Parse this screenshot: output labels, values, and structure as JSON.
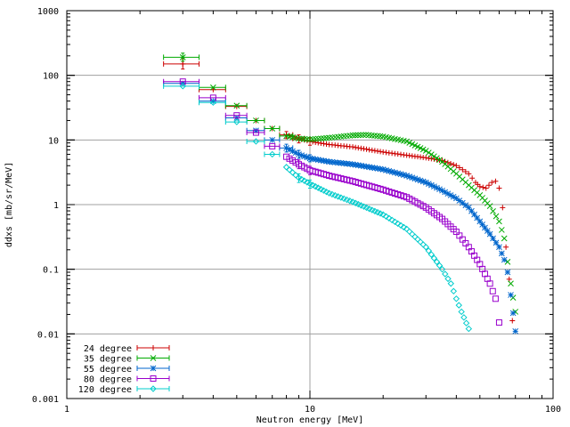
{
  "chart_data": {
    "type": "scatter",
    "xlabel": "Neutron energy [MeV]",
    "ylabel": "ddxs [mb/sr/MeV]",
    "xscale": "log",
    "yscale": "log",
    "xlim": [
      1,
      100
    ],
    "ylim": [
      0.001,
      1000
    ],
    "x_ticks": [
      {
        "value": 1,
        "label": "1"
      },
      {
        "value": 10,
        "label": "10"
      },
      {
        "value": 100,
        "label": "100"
      }
    ],
    "y_ticks": [
      {
        "value": 0.001,
        "label": "0.001"
      },
      {
        "value": 0.01,
        "label": "0.01"
      },
      {
        "value": 0.1,
        "label": "0.1"
      },
      {
        "value": 1,
        "label": "1"
      },
      {
        "value": 10,
        "label": "10"
      },
      {
        "value": 100,
        "label": "100"
      },
      {
        "value": 1000,
        "label": "1000"
      }
    ],
    "grid": true,
    "legend_position": "bottom-left",
    "series": [
      {
        "name": "24 degree",
        "color": "#cc0000",
        "marker": "plus",
        "points": [
          {
            "x": 3.0,
            "y": 150,
            "xlo": 2.5,
            "xhi": 3.5,
            "ylo": 125,
            "yhi": 180
          },
          {
            "x": 4.0,
            "y": 60,
            "xlo": 3.5,
            "xhi": 4.5
          },
          {
            "x": 5.0,
            "y": 33,
            "xlo": 4.5,
            "xhi": 5.5
          },
          {
            "x": 6.0,
            "y": 20,
            "xlo": 5.5,
            "xhi": 6.5
          },
          {
            "x": 7.0,
            "y": 15,
            "xlo": 6.5,
            "xhi": 7.5
          },
          {
            "x": 8.0,
            "y": 12,
            "xlo": 7.5,
            "xhi": 8.5,
            "ylo": 10.5,
            "yhi": 13.5
          },
          {
            "x": 9.0,
            "y": 10.5,
            "xlo": 8.5,
            "xhi": 9.5,
            "ylo": 9.0,
            "yhi": 12.0
          },
          {
            "x": 10.0,
            "y": 9.5,
            "ylo": 8.3,
            "yhi": 10.8
          },
          {
            "x": 12.0,
            "y": 8.5
          },
          {
            "x": 15.0,
            "y": 7.8
          },
          {
            "x": 20.0,
            "y": 6.5
          },
          {
            "x": 25.0,
            "y": 5.8
          },
          {
            "x": 30.0,
            "y": 5.3
          },
          {
            "x": 35.0,
            "y": 4.8
          },
          {
            "x": 40.0,
            "y": 4.0
          },
          {
            "x": 45.0,
            "y": 3.0
          },
          {
            "x": 48.0,
            "y": 2.2
          },
          {
            "x": 50.0,
            "y": 1.9
          },
          {
            "x": 53.0,
            "y": 1.8
          },
          {
            "x": 56.0,
            "y": 2.2
          },
          {
            "x": 58.0,
            "y": 2.3
          },
          {
            "x": 60.0,
            "y": 1.8
          },
          {
            "x": 62.0,
            "y": 0.9
          },
          {
            "x": 64.0,
            "y": 0.22
          },
          {
            "x": 66.0,
            "y": 0.07
          },
          {
            "x": 68.0,
            "y": 0.016
          }
        ]
      },
      {
        "name": "35 degree",
        "color": "#00aa00",
        "marker": "cross",
        "points": [
          {
            "x": 3.0,
            "y": 190,
            "xlo": 2.5,
            "xhi": 3.5,
            "ylo": 165,
            "yhi": 220
          },
          {
            "x": 4.0,
            "y": 65,
            "xlo": 3.5,
            "xhi": 4.5
          },
          {
            "x": 5.0,
            "y": 34,
            "xlo": 4.5,
            "xhi": 5.5
          },
          {
            "x": 6.0,
            "y": 20,
            "xlo": 5.5,
            "xhi": 6.5
          },
          {
            "x": 7.0,
            "y": 15,
            "xlo": 6.5,
            "xhi": 7.5
          },
          {
            "x": 8.0,
            "y": 11.5,
            "xlo": 7.5,
            "xhi": 8.5
          },
          {
            "x": 9.0,
            "y": 10.5
          },
          {
            "x": 10.0,
            "y": 10.2
          },
          {
            "x": 12.0,
            "y": 10.8
          },
          {
            "x": 15.0,
            "y": 11.8
          },
          {
            "x": 17.0,
            "y": 12.0
          },
          {
            "x": 20.0,
            "y": 11.3
          },
          {
            "x": 25.0,
            "y": 9.5
          },
          {
            "x": 30.0,
            "y": 6.8
          },
          {
            "x": 35.0,
            "y": 4.6
          },
          {
            "x": 40.0,
            "y": 3.0
          },
          {
            "x": 45.0,
            "y": 2.0
          },
          {
            "x": 50.0,
            "y": 1.4
          },
          {
            "x": 55.0,
            "y": 0.95
          },
          {
            "x": 60.0,
            "y": 0.55
          },
          {
            "x": 63.0,
            "y": 0.3
          },
          {
            "x": 65.0,
            "y": 0.13
          },
          {
            "x": 67.0,
            "y": 0.06
          },
          {
            "x": 70.0,
            "y": 0.022
          }
        ]
      },
      {
        "name": "55 degree",
        "color": "#0066cc",
        "marker": "star",
        "points": [
          {
            "x": 3.0,
            "y": 75,
            "xlo": 2.5,
            "xhi": 3.5
          },
          {
            "x": 4.0,
            "y": 40,
            "xlo": 3.5,
            "xhi": 4.5
          },
          {
            "x": 5.0,
            "y": 22,
            "xlo": 4.5,
            "xhi": 5.5
          },
          {
            "x": 6.0,
            "y": 14,
            "xlo": 5.5,
            "xhi": 6.5
          },
          {
            "x": 7.0,
            "y": 10,
            "xlo": 6.5,
            "xhi": 7.5
          },
          {
            "x": 8.0,
            "y": 7.5,
            "xlo": 7.5,
            "xhi": 8.5,
            "ylo": 6.5,
            "yhi": 8.6
          },
          {
            "x": 9.0,
            "y": 6.0,
            "ylo": 5.2,
            "yhi": 6.9
          },
          {
            "x": 10.0,
            "y": 5.2,
            "ylo": 4.6,
            "yhi": 5.9
          },
          {
            "x": 12.0,
            "y": 4.6
          },
          {
            "x": 15.0,
            "y": 4.2
          },
          {
            "x": 20.0,
            "y": 3.5
          },
          {
            "x": 25.0,
            "y": 2.8
          },
          {
            "x": 30.0,
            "y": 2.2
          },
          {
            "x": 35.0,
            "y": 1.65
          },
          {
            "x": 40.0,
            "y": 1.25
          },
          {
            "x": 45.0,
            "y": 0.9
          },
          {
            "x": 50.0,
            "y": 0.55
          },
          {
            "x": 55.0,
            "y": 0.35
          },
          {
            "x": 60.0,
            "y": 0.22
          },
          {
            "x": 63.0,
            "y": 0.14
          },
          {
            "x": 65.0,
            "y": 0.09
          },
          {
            "x": 67.0,
            "y": 0.04
          },
          {
            "x": 70.0,
            "y": 0.011
          }
        ]
      },
      {
        "name": "80 degree",
        "color": "#9900cc",
        "marker": "box",
        "points": [
          {
            "x": 3.0,
            "y": 80,
            "xlo": 2.5,
            "xhi": 3.5
          },
          {
            "x": 4.0,
            "y": 45,
            "xlo": 3.5,
            "xhi": 4.5
          },
          {
            "x": 5.0,
            "y": 24,
            "xlo": 4.5,
            "xhi": 5.5
          },
          {
            "x": 6.0,
            "y": 13,
            "xlo": 5.5,
            "xhi": 6.5
          },
          {
            "x": 7.0,
            "y": 8.0,
            "xlo": 6.5,
            "xhi": 7.5
          },
          {
            "x": 8.0,
            "y": 5.5
          },
          {
            "x": 9.0,
            "y": 4.2,
            "ylo": 3.6,
            "yhi": 4.9
          },
          {
            "x": 10.0,
            "y": 3.4,
            "ylo": 2.9,
            "yhi": 3.9
          },
          {
            "x": 12.0,
            "y": 2.8
          },
          {
            "x": 15.0,
            "y": 2.3
          },
          {
            "x": 20.0,
            "y": 1.7
          },
          {
            "x": 25.0,
            "y": 1.3
          },
          {
            "x": 30.0,
            "y": 0.9
          },
          {
            "x": 35.0,
            "y": 0.6
          },
          {
            "x": 40.0,
            "y": 0.38
          },
          {
            "x": 45.0,
            "y": 0.22
          },
          {
            "x": 50.0,
            "y": 0.12
          },
          {
            "x": 55.0,
            "y": 0.06
          },
          {
            "x": 58.0,
            "y": 0.035
          },
          {
            "x": 60.0,
            "y": 0.015
          }
        ]
      },
      {
        "name": "120 degree",
        "color": "#00cccc",
        "marker": "diamond",
        "points": [
          {
            "x": 3.0,
            "y": 68,
            "xlo": 2.5,
            "xhi": 3.5
          },
          {
            "x": 4.0,
            "y": 38,
            "xlo": 3.5,
            "xhi": 4.5
          },
          {
            "x": 5.0,
            "y": 19,
            "xlo": 4.5,
            "xhi": 5.5
          },
          {
            "x": 6.0,
            "y": 9.5,
            "xlo": 5.5,
            "xhi": 6.5
          },
          {
            "x": 7.0,
            "y": 6.0,
            "xlo": 6.5,
            "xhi": 7.5
          },
          {
            "x": 8.0,
            "y": 3.8
          },
          {
            "x": 9.0,
            "y": 2.6,
            "ylo": 2.2,
            "yhi": 3.0
          },
          {
            "x": 10.0,
            "y": 2.1,
            "ylo": 1.8,
            "yhi": 2.4
          },
          {
            "x": 12.0,
            "y": 1.5
          },
          {
            "x": 15.0,
            "y": 1.1
          },
          {
            "x": 20.0,
            "y": 0.7
          },
          {
            "x": 25.0,
            "y": 0.42
          },
          {
            "x": 30.0,
            "y": 0.22
          },
          {
            "x": 35.0,
            "y": 0.1
          },
          {
            "x": 38.0,
            "y": 0.06
          },
          {
            "x": 40.0,
            "y": 0.035
          },
          {
            "x": 42.0,
            "y": 0.022
          },
          {
            "x": 45.0,
            "y": 0.012
          }
        ]
      }
    ]
  }
}
